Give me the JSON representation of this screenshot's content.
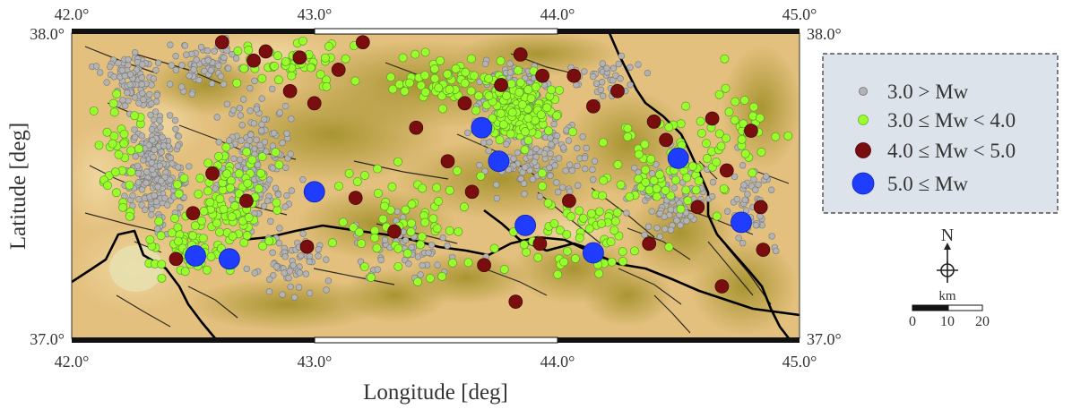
{
  "map": {
    "title": "",
    "xlabel": "Longitude [deg]",
    "ylabel": "Latitude [deg]",
    "extent": {
      "lon": [
        42.0,
        45.0
      ],
      "lat": [
        37.0,
        38.0
      ]
    },
    "lon_ticks": [
      "42.0°",
      "43.0°",
      "44.0°",
      "45.0°"
    ],
    "lat_ticks": [
      {
        "value": 38.0,
        "label": "38.0°"
      },
      {
        "value": 37.0,
        "label": "37.0°"
      }
    ],
    "colors": {
      "terrain_light": "#e3c07e",
      "terrain_dark": "#a39327",
      "fault": "#111111",
      "border": "#000000",
      "class_gray": "#b3b3b3",
      "class_green": "#99ff2a",
      "class_red": "#7a0d0d",
      "class_blue": "#1f3dff",
      "legend_bg": "#dde3ea"
    }
  },
  "legend": {
    "items": [
      {
        "label": "3.0 > Mw",
        "color": "#b3b3b3",
        "class": "small-gray"
      },
      {
        "label": "3.0 ≤ Mw < 4.0",
        "color": "#99ff2a",
        "class": "green"
      },
      {
        "label": "4.0 ≤ Mw < 5.0",
        "color": "#7a0d0d",
        "class": "dark-red"
      },
      {
        "label": "5.0 ≤ Mw",
        "color": "#1f3dff",
        "class": "blue"
      }
    ]
  },
  "compass": {
    "label": "N"
  },
  "scalebar": {
    "unit": "km",
    "ticks": [
      "0",
      "10",
      "20"
    ]
  },
  "events": {
    "mw_ge_5": [
      {
        "lon": 42.51,
        "lat": 37.27
      },
      {
        "lon": 42.65,
        "lat": 37.26
      },
      {
        "lon": 43.0,
        "lat": 37.48
      },
      {
        "lon": 43.69,
        "lat": 37.69
      },
      {
        "lon": 43.76,
        "lat": 37.58
      },
      {
        "lon": 43.87,
        "lat": 37.37
      },
      {
        "lon": 44.15,
        "lat": 37.28
      },
      {
        "lon": 44.5,
        "lat": 37.59
      },
      {
        "lon": 44.76,
        "lat": 37.38
      }
    ],
    "mw_4_to_5": [
      {
        "lon": 42.62,
        "lat": 37.97
      },
      {
        "lon": 42.75,
        "lat": 37.91
      },
      {
        "lon": 42.8,
        "lat": 37.94
      },
      {
        "lon": 42.94,
        "lat": 37.92
      },
      {
        "lon": 43.1,
        "lat": 37.88
      },
      {
        "lon": 43.2,
        "lat": 37.97
      },
      {
        "lon": 43.0,
        "lat": 37.77
      },
      {
        "lon": 43.42,
        "lat": 37.69
      },
      {
        "lon": 43.77,
        "lat": 37.83
      },
      {
        "lon": 43.85,
        "lat": 37.93
      },
      {
        "lon": 44.07,
        "lat": 37.86
      },
      {
        "lon": 44.15,
        "lat": 37.76
      },
      {
        "lon": 44.25,
        "lat": 37.81
      },
      {
        "lon": 44.4,
        "lat": 37.71
      },
      {
        "lon": 44.45,
        "lat": 37.65
      },
      {
        "lon": 44.7,
        "lat": 37.55
      },
      {
        "lon": 44.8,
        "lat": 37.68
      },
      {
        "lon": 44.84,
        "lat": 37.43
      },
      {
        "lon": 44.85,
        "lat": 37.29
      },
      {
        "lon": 43.55,
        "lat": 37.58
      },
      {
        "lon": 43.65,
        "lat": 37.48
      },
      {
        "lon": 42.9,
        "lat": 37.81
      },
      {
        "lon": 42.58,
        "lat": 37.54
      },
      {
        "lon": 42.72,
        "lat": 37.45
      },
      {
        "lon": 42.5,
        "lat": 37.41
      },
      {
        "lon": 42.43,
        "lat": 37.26
      },
      {
        "lon": 42.97,
        "lat": 37.3
      },
      {
        "lon": 43.17,
        "lat": 37.46
      },
      {
        "lon": 43.33,
        "lat": 37.35
      },
      {
        "lon": 43.7,
        "lat": 37.24
      },
      {
        "lon": 43.93,
        "lat": 37.31
      },
      {
        "lon": 44.38,
        "lat": 37.31
      },
      {
        "lon": 43.94,
        "lat": 37.86
      },
      {
        "lon": 43.62,
        "lat": 37.77
      },
      {
        "lon": 44.64,
        "lat": 37.72
      },
      {
        "lon": 44.58,
        "lat": 37.43
      },
      {
        "lon": 44.68,
        "lat": 37.17
      },
      {
        "lon": 44.05,
        "lat": 37.45
      },
      {
        "lon": 43.83,
        "lat": 37.12
      }
    ]
  }
}
